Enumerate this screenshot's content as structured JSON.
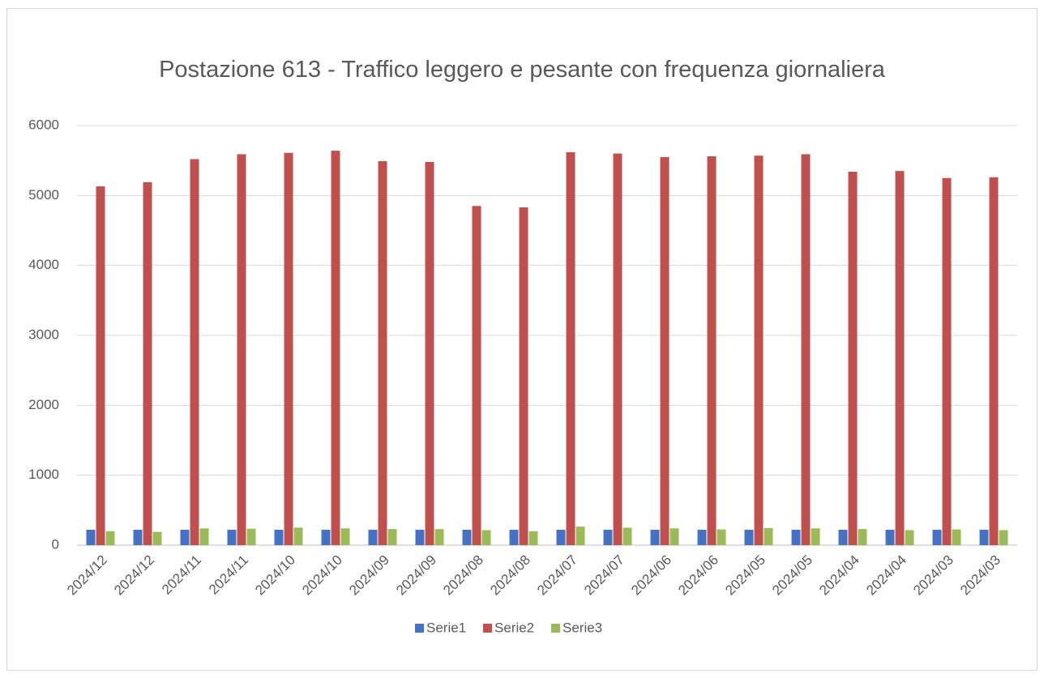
{
  "chart_data": {
    "type": "bar",
    "title": "Postazione 613 - Traffico leggero e pesante con frequenza giornaliera",
    "categories": [
      "2024/12",
      "2024/12",
      "2024/11",
      "2024/11",
      "2024/10",
      "2024/10",
      "2024/09",
      "2024/09",
      "2024/08",
      "2024/08",
      "2024/07",
      "2024/07",
      "2024/06",
      "2024/06",
      "2024/05",
      "2024/05",
      "2024/04",
      "2024/04",
      "2024/03",
      "2024/03"
    ],
    "series": [
      {
        "name": "Serie1",
        "color": "#4472c4",
        "values": [
          220,
          220,
          220,
          220,
          220,
          220,
          220,
          220,
          220,
          220,
          220,
          220,
          220,
          220,
          220,
          220,
          220,
          220,
          220,
          220
        ]
      },
      {
        "name": "Serie2",
        "color": "#c0504d",
        "values": [
          5130,
          5190,
          5520,
          5590,
          5610,
          5640,
          5490,
          5480,
          4850,
          4830,
          5620,
          5600,
          5550,
          5560,
          5570,
          5590,
          5340,
          5350,
          5250,
          5260
        ]
      },
      {
        "name": "Serie3",
        "color": "#9bbb59",
        "values": [
          200,
          190,
          240,
          235,
          250,
          240,
          230,
          230,
          215,
          200,
          265,
          250,
          240,
          225,
          245,
          240,
          230,
          215,
          225,
          215
        ]
      }
    ],
    "ylim": [
      0,
      6000
    ],
    "yticks": [
      0,
      1000,
      2000,
      3000,
      4000,
      5000,
      6000
    ],
    "grid": true,
    "legend": "bottom"
  }
}
